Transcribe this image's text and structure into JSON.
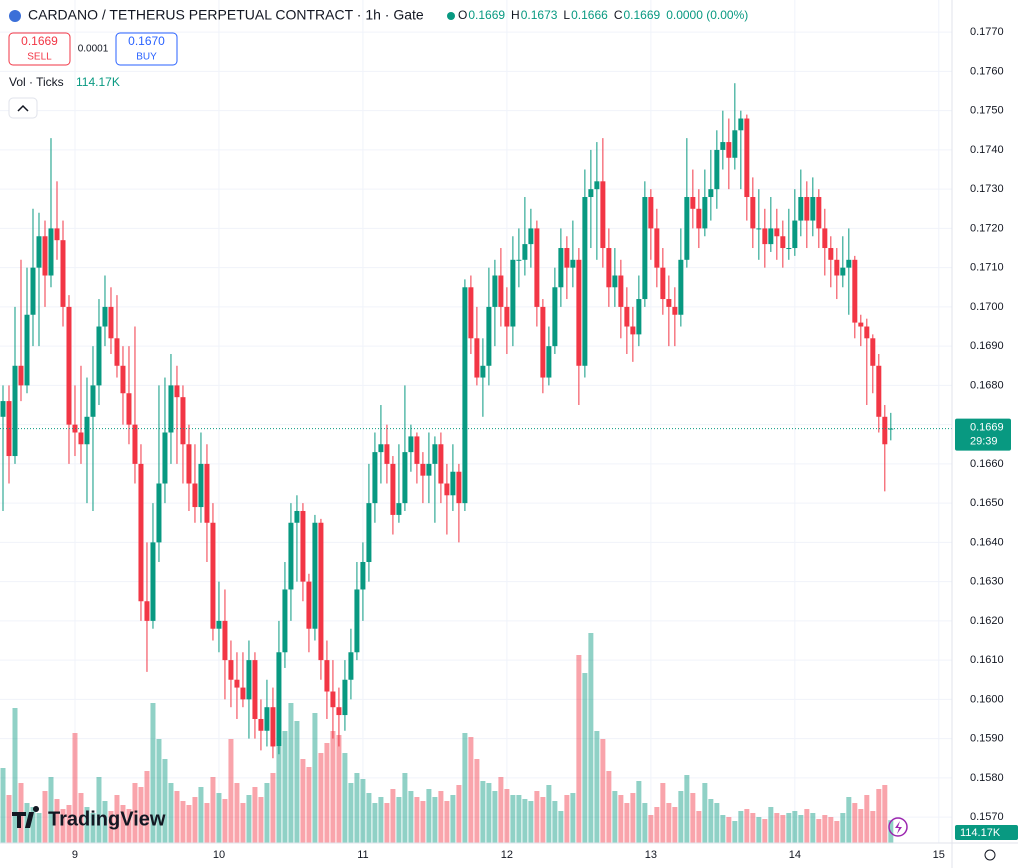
{
  "header": {
    "title": "CARDANO / TETHERUS PERPETUAL CONTRACT · 1h · Gate",
    "ohlc": [
      {
        "label": "O",
        "value": "0.1669"
      },
      {
        "label": "H",
        "value": "0.1673"
      },
      {
        "label": "L",
        "value": "0.1666"
      },
      {
        "label": "C",
        "value": "0.1669"
      }
    ],
    "change": "0.0000 (0.00%)",
    "sell": {
      "price": "0.1669",
      "label": "SELL"
    },
    "spread": "0.0001",
    "buy": {
      "price": "0.1670",
      "label": "BUY"
    },
    "volume_label": "Vol · Ticks",
    "volume_value": "114.17K"
  },
  "branding": "TradingView",
  "chart_data": {
    "type": "candlestick",
    "xlim": [
      -0.5,
      158.2
    ],
    "ylim": [
      0.15634,
      0.17782
    ],
    "vlim": [
      0,
      4215
    ],
    "xticks": [
      {
        "value": 12,
        "label": "9"
      },
      {
        "value": 36,
        "label": "10"
      },
      {
        "value": 60,
        "label": "11"
      },
      {
        "value": 84,
        "label": "12"
      },
      {
        "value": 108,
        "label": "13"
      },
      {
        "value": 132,
        "label": "14"
      },
      {
        "value": 156,
        "label": "15"
      }
    ],
    "yticks": [
      {
        "value": 0.157,
        "label": "0.1570"
      },
      {
        "value": 0.158,
        "label": "0.1580"
      },
      {
        "value": 0.159,
        "label": "0.1590"
      },
      {
        "value": 0.16,
        "label": "0.1600"
      },
      {
        "value": 0.161,
        "label": "0.1610"
      },
      {
        "value": 0.162,
        "label": "0.1620"
      },
      {
        "value": 0.163,
        "label": "0.1630"
      },
      {
        "value": 0.164,
        "label": "0.1640"
      },
      {
        "value": 0.165,
        "label": "0.1650"
      },
      {
        "value": 0.166,
        "label": "0.1660"
      },
      {
        "value": 0.167,
        "label": "0.1670"
      },
      {
        "value": 0.168,
        "label": "0.1680"
      },
      {
        "value": 0.169,
        "label": "0.1690"
      },
      {
        "value": 0.17,
        "label": "0.1700"
      },
      {
        "value": 0.171,
        "label": "0.1710"
      },
      {
        "value": 0.172,
        "label": "0.1720"
      },
      {
        "value": 0.173,
        "label": "0.1730"
      },
      {
        "value": 0.174,
        "label": "0.1740"
      },
      {
        "value": 0.175,
        "label": "0.1750"
      },
      {
        "value": 0.176,
        "label": "0.1760"
      },
      {
        "value": 0.177,
        "label": "0.1770"
      }
    ],
    "grid": true,
    "up_color": "#089981",
    "down_color": "#f23645",
    "last_price": 0.1669,
    "countdown": "29:39",
    "volume_badge": "114.17K",
    "candles": [
      [
        0.1672,
        0.168,
        0.1648,
        0.1676
      ],
      [
        0.1676,
        0.168,
        0.1655,
        0.1662
      ],
      [
        0.1662,
        0.17,
        0.166,
        0.1685
      ],
      [
        0.1685,
        0.1712,
        0.1676,
        0.168
      ],
      [
        0.168,
        0.171,
        0.1678,
        0.1698
      ],
      [
        0.1698,
        0.1725,
        0.169,
        0.171
      ],
      [
        0.171,
        0.1724,
        0.169,
        0.1718
      ],
      [
        0.1718,
        0.1722,
        0.17,
        0.1708
      ],
      [
        0.1708,
        0.1743,
        0.1705,
        0.172
      ],
      [
        0.172,
        0.1732,
        0.1712,
        0.1717
      ],
      [
        0.1717,
        0.1722,
        0.1695,
        0.17
      ],
      [
        0.17,
        0.1703,
        0.166,
        0.167
      ],
      [
        0.167,
        0.168,
        0.1662,
        0.1668
      ],
      [
        0.1668,
        0.1685,
        0.166,
        0.1665
      ],
      [
        0.1665,
        0.1682,
        0.165,
        0.1672
      ],
      [
        0.1672,
        0.169,
        0.1648,
        0.168
      ],
      [
        0.168,
        0.1702,
        0.1675,
        0.1695
      ],
      [
        0.1695,
        0.1708,
        0.169,
        0.17
      ],
      [
        0.17,
        0.1705,
        0.1688,
        0.1692
      ],
      [
        0.1692,
        0.1703,
        0.1682,
        0.1685
      ],
      [
        0.1685,
        0.169,
        0.167,
        0.1678
      ],
      [
        0.1678,
        0.169,
        0.1665,
        0.167
      ],
      [
        0.167,
        0.1695,
        0.1655,
        0.166
      ],
      [
        0.166,
        0.1665,
        0.162,
        0.1625
      ],
      [
        0.1625,
        0.164,
        0.1607,
        0.162
      ],
      [
        0.162,
        0.165,
        0.1618,
        0.164
      ],
      [
        0.164,
        0.168,
        0.1635,
        0.1655
      ],
      [
        0.1655,
        0.1682,
        0.165,
        0.1668
      ],
      [
        0.1668,
        0.1688,
        0.166,
        0.168
      ],
      [
        0.168,
        0.1685,
        0.166,
        0.1677
      ],
      [
        0.1677,
        0.168,
        0.1655,
        0.1665
      ],
      [
        0.1665,
        0.167,
        0.1648,
        0.1655
      ],
      [
        0.1655,
        0.1665,
        0.1645,
        0.1649
      ],
      [
        0.1649,
        0.1668,
        0.1645,
        0.166
      ],
      [
        0.166,
        0.1665,
        0.1635,
        0.1645
      ],
      [
        0.1645,
        0.165,
        0.1615,
        0.1618
      ],
      [
        0.1618,
        0.163,
        0.1612,
        0.162
      ],
      [
        0.162,
        0.1628,
        0.16,
        0.161
      ],
      [
        0.161,
        0.1615,
        0.1598,
        0.1605
      ],
      [
        0.1605,
        0.1612,
        0.1595,
        0.1603
      ],
      [
        0.1603,
        0.1612,
        0.1598,
        0.16
      ],
      [
        0.16,
        0.1615,
        0.159,
        0.161
      ],
      [
        0.161,
        0.1612,
        0.159,
        0.1595
      ],
      [
        0.1595,
        0.16,
        0.1587,
        0.1592
      ],
      [
        0.1592,
        0.1605,
        0.1588,
        0.1598
      ],
      [
        0.1598,
        0.1603,
        0.1585,
        0.1588
      ],
      [
        0.1588,
        0.162,
        0.1586,
        0.1612
      ],
      [
        0.1612,
        0.1635,
        0.1608,
        0.1628
      ],
      [
        0.1628,
        0.165,
        0.162,
        0.1645
      ],
      [
        0.1645,
        0.1652,
        0.163,
        0.1648
      ],
      [
        0.1648,
        0.165,
        0.1625,
        0.163
      ],
      [
        0.163,
        0.1632,
        0.1612,
        0.1618
      ],
      [
        0.1618,
        0.1647,
        0.1615,
        0.1645
      ],
      [
        0.1645,
        0.1646,
        0.1605,
        0.161
      ],
      [
        0.161,
        0.1615,
        0.1595,
        0.1602
      ],
      [
        0.1602,
        0.161,
        0.159,
        0.1598
      ],
      [
        0.1598,
        0.1603,
        0.1588,
        0.1596
      ],
      [
        0.1596,
        0.161,
        0.1592,
        0.1605
      ],
      [
        0.1605,
        0.1618,
        0.16,
        0.1612
      ],
      [
        0.1612,
        0.1635,
        0.161,
        0.1628
      ],
      [
        0.1628,
        0.164,
        0.162,
        0.1635
      ],
      [
        0.1635,
        0.166,
        0.163,
        0.165
      ],
      [
        0.165,
        0.1668,
        0.1645,
        0.1663
      ],
      [
        0.1663,
        0.1675,
        0.1655,
        0.1665
      ],
      [
        0.1665,
        0.167,
        0.1655,
        0.166
      ],
      [
        0.166,
        0.1662,
        0.1642,
        0.1647
      ],
      [
        0.1647,
        0.1665,
        0.1645,
        0.165
      ],
      [
        0.165,
        0.168,
        0.1648,
        0.1663
      ],
      [
        0.1663,
        0.167,
        0.1658,
        0.1667
      ],
      [
        0.1667,
        0.1668,
        0.1655,
        0.166
      ],
      [
        0.166,
        0.1663,
        0.165,
        0.1657
      ],
      [
        0.1657,
        0.1668,
        0.165,
        0.166
      ],
      [
        0.166,
        0.1667,
        0.1645,
        0.1665
      ],
      [
        0.1665,
        0.1668,
        0.165,
        0.1655
      ],
      [
        0.1655,
        0.166,
        0.1642,
        0.1652
      ],
      [
        0.1652,
        0.1665,
        0.1648,
        0.1658
      ],
      [
        0.1658,
        0.166,
        0.164,
        0.165
      ],
      [
        0.165,
        0.1707,
        0.1648,
        0.1705
      ],
      [
        0.1705,
        0.1708,
        0.1688,
        0.1692
      ],
      [
        0.1692,
        0.17,
        0.168,
        0.1682
      ],
      [
        0.1682,
        0.1692,
        0.1672,
        0.1685
      ],
      [
        0.1685,
        0.171,
        0.168,
        0.17
      ],
      [
        0.17,
        0.1712,
        0.169,
        0.1708
      ],
      [
        0.1708,
        0.1715,
        0.1695,
        0.17
      ],
      [
        0.17,
        0.1705,
        0.1688,
        0.1695
      ],
      [
        0.1695,
        0.1718,
        0.169,
        0.1712
      ],
      [
        0.1712,
        0.172,
        0.1705,
        0.1712
      ],
      [
        0.1712,
        0.1728,
        0.1708,
        0.1716
      ],
      [
        0.1716,
        0.1725,
        0.171,
        0.172
      ],
      [
        0.172,
        0.1722,
        0.1695,
        0.17
      ],
      [
        0.17,
        0.1702,
        0.1678,
        0.1682
      ],
      [
        0.1682,
        0.1695,
        0.168,
        0.169
      ],
      [
        0.169,
        0.171,
        0.1688,
        0.1705
      ],
      [
        0.1705,
        0.172,
        0.17,
        0.1715
      ],
      [
        0.1715,
        0.1718,
        0.1702,
        0.171
      ],
      [
        0.171,
        0.1722,
        0.1705,
        0.1712
      ],
      [
        0.1712,
        0.1715,
        0.1675,
        0.1685
      ],
      [
        0.1685,
        0.1735,
        0.1682,
        0.1728
      ],
      [
        0.1728,
        0.174,
        0.1715,
        0.173
      ],
      [
        0.173,
        0.1742,
        0.1712,
        0.1732
      ],
      [
        0.1732,
        0.1743,
        0.171,
        0.1715
      ],
      [
        0.1715,
        0.172,
        0.17,
        0.1705
      ],
      [
        0.1705,
        0.1715,
        0.17,
        0.1708
      ],
      [
        0.1708,
        0.1712,
        0.1692,
        0.17
      ],
      [
        0.17,
        0.1705,
        0.1688,
        0.1695
      ],
      [
        0.1695,
        0.17,
        0.1686,
        0.1693
      ],
      [
        0.1693,
        0.1708,
        0.169,
        0.1702
      ],
      [
        0.1702,
        0.1732,
        0.17,
        0.1728
      ],
      [
        0.1728,
        0.173,
        0.1712,
        0.172
      ],
      [
        0.172,
        0.1725,
        0.1705,
        0.171
      ],
      [
        0.171,
        0.1715,
        0.1698,
        0.1702
      ],
      [
        0.1702,
        0.1708,
        0.169,
        0.17
      ],
      [
        0.17,
        0.1705,
        0.169,
        0.1698
      ],
      [
        0.1698,
        0.172,
        0.1695,
        0.1712
      ],
      [
        0.1712,
        0.1743,
        0.171,
        0.1728
      ],
      [
        0.1728,
        0.1735,
        0.172,
        0.1725
      ],
      [
        0.1725,
        0.173,
        0.1715,
        0.172
      ],
      [
        0.172,
        0.1735,
        0.1718,
        0.1728
      ],
      [
        0.1728,
        0.174,
        0.1722,
        0.173
      ],
      [
        0.173,
        0.1745,
        0.1725,
        0.174
      ],
      [
        0.174,
        0.175,
        0.1735,
        0.1742
      ],
      [
        0.1742,
        0.1748,
        0.173,
        0.1738
      ],
      [
        0.1738,
        0.1757,
        0.1735,
        0.1745
      ],
      [
        0.1745,
        0.175,
        0.173,
        0.1748
      ],
      [
        0.1748,
        0.1749,
        0.1722,
        0.1728
      ],
      [
        0.1728,
        0.1733,
        0.1715,
        0.172
      ],
      [
        0.172,
        0.173,
        0.1712,
        0.172
      ],
      [
        0.172,
        0.1725,
        0.171,
        0.1716
      ],
      [
        0.1716,
        0.1728,
        0.1714,
        0.172
      ],
      [
        0.172,
        0.1725,
        0.1712,
        0.1718
      ],
      [
        0.1718,
        0.1722,
        0.171,
        0.1715
      ],
      [
        0.1715,
        0.1725,
        0.1712,
        0.1715
      ],
      [
        0.1715,
        0.173,
        0.1713,
        0.1722
      ],
      [
        0.1722,
        0.1735,
        0.1718,
        0.1728
      ],
      [
        0.1728,
        0.1732,
        0.1715,
        0.1722
      ],
      [
        0.1722,
        0.1733,
        0.1718,
        0.1728
      ],
      [
        0.1728,
        0.173,
        0.1715,
        0.172
      ],
      [
        0.172,
        0.1725,
        0.1708,
        0.1715
      ],
      [
        0.1715,
        0.1718,
        0.1705,
        0.1712
      ],
      [
        0.1712,
        0.1715,
        0.1702,
        0.1708
      ],
      [
        0.1708,
        0.1718,
        0.1705,
        0.171
      ],
      [
        0.171,
        0.172,
        0.1698,
        0.1712
      ],
      [
        0.1712,
        0.1713,
        0.1692,
        0.1696
      ],
      [
        0.1696,
        0.1698,
        0.169,
        0.1695
      ],
      [
        0.1695,
        0.1697,
        0.1675,
        0.1692
      ],
      [
        0.1692,
        0.1693,
        0.1678,
        0.1685
      ],
      [
        0.1685,
        0.1688,
        0.1668,
        0.1672
      ],
      [
        0.1672,
        0.1675,
        0.1653,
        0.1665
      ],
      [
        0.1669,
        0.1673,
        0.1666,
        0.1669
      ]
    ],
    "volumes": [
      375,
      240,
      675,
      300,
      200,
      180,
      150,
      260,
      330,
      220,
      170,
      190,
      550,
      250,
      180,
      150,
      330,
      210,
      160,
      240,
      190,
      170,
      300,
      280,
      360,
      700,
      520,
      420,
      300,
      260,
      210,
      190,
      230,
      280,
      200,
      330,
      250,
      220,
      520,
      300,
      200,
      240,
      280,
      230,
      300,
      350,
      480,
      560,
      700,
      610,
      420,
      380,
      650,
      450,
      500,
      560,
      540,
      450,
      300,
      350,
      320,
      250,
      200,
      230,
      200,
      270,
      230,
      350,
      260,
      230,
      210,
      270,
      230,
      260,
      210,
      240,
      290,
      550,
      530,
      420,
      310,
      300,
      260,
      330,
      270,
      240,
      240,
      220,
      210,
      260,
      230,
      290,
      210,
      160,
      240,
      250,
      940,
      850,
      1050,
      560,
      520,
      360,
      260,
      240,
      200,
      250,
      310,
      200,
      140,
      180,
      300,
      200,
      180,
      260,
      340,
      250,
      160,
      300,
      220,
      200,
      140,
      130,
      110,
      160,
      170,
      150,
      130,
      120,
      180,
      150,
      140,
      150,
      160,
      140,
      170,
      150,
      120,
      140,
      130,
      110,
      150,
      230,
      200,
      170,
      240,
      160,
      270,
      290,
      114.17
    ]
  }
}
